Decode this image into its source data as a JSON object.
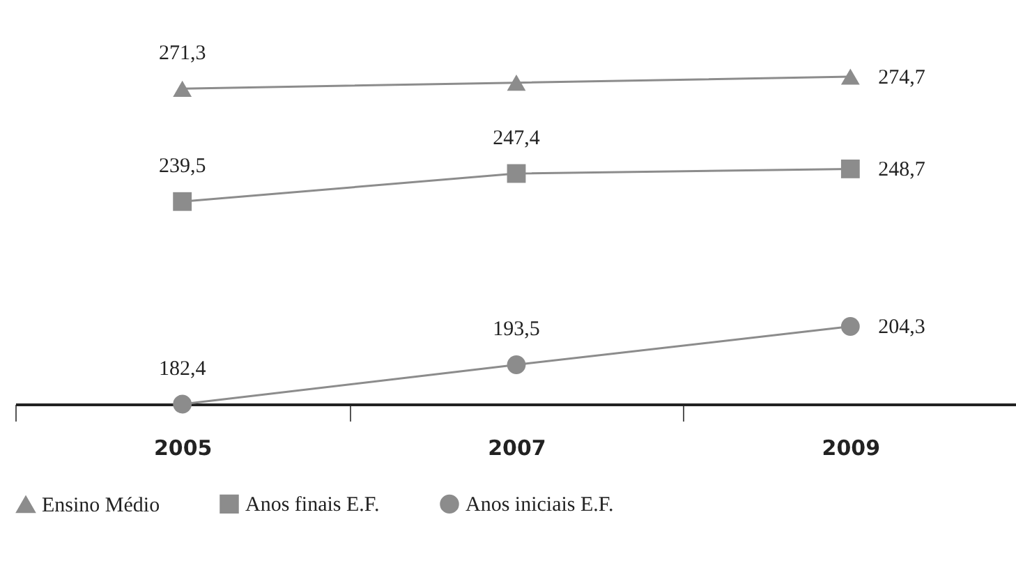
{
  "chart_data": {
    "type": "line",
    "categories": [
      "2005",
      "2007",
      "2009"
    ],
    "tick_labels": "x",
    "grid": false,
    "legend": "bottom",
    "series": [
      {
        "name": "Ensino Médio",
        "color": "#8c8c8c",
        "marker": "triangle",
        "values": [
          271.3,
          273.0,
          274.7
        ],
        "value_labels": [
          "271,3",
          null,
          "274,7"
        ]
      },
      {
        "name": "Anos finais E.F.",
        "color": "#8c8c8c",
        "marker": "square",
        "values": [
          239.5,
          247.4,
          248.7
        ],
        "value_labels": [
          "239,5",
          "247,4",
          "248,7"
        ]
      },
      {
        "name": "Anos iniciais E.F.",
        "color": "#8c8c8c",
        "marker": "circle",
        "values": [
          182.4,
          193.5,
          204.3
        ],
        "value_labels": [
          "182,4",
          "193,5",
          "204,3"
        ]
      }
    ]
  }
}
